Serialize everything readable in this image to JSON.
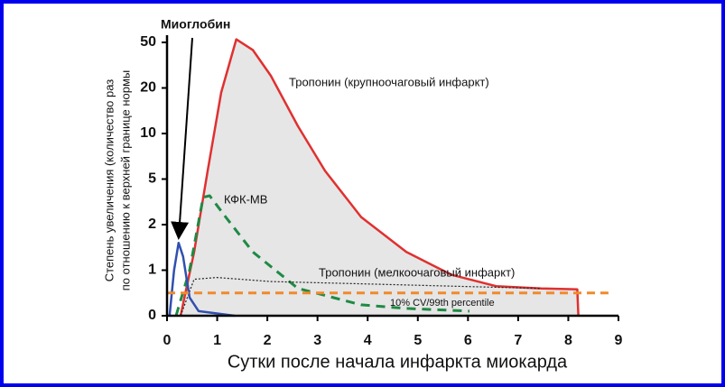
{
  "chart_data": {
    "type": "line",
    "x_label": "Сутки после начала инфаркта миокарда",
    "y_label": [
      "Степень увеличения (количество раз",
      "по отношению к верхней границе нормы"
    ],
    "xlim": [
      0,
      9
    ],
    "xticks": [
      0,
      1,
      2,
      3,
      4,
      5,
      6,
      7,
      8,
      9
    ],
    "ylim": [
      0,
      50
    ],
    "yticks": [
      0,
      1,
      2,
      5,
      10,
      20,
      50
    ],
    "series": [
      {
        "name": "Тропонин (крупноочаговый инфаркт)",
        "color": "#e03030",
        "style": "solid",
        "fill": "#e6e6e6",
        "x": [
          0.27,
          0.54,
          0.81,
          1.08,
          1.38,
          1.71,
          2.07,
          2.61,
          3.15,
          3.87,
          4.77,
          5.67,
          6.56,
          7.46,
          8.18,
          8.2
        ],
        "values": [
          0,
          1.4,
          5.9,
          19,
          52,
          45,
          28,
          11.6,
          5.9,
          2.5,
          1.4,
          0.9,
          0.65,
          0.6,
          0.58,
          0
        ]
      },
      {
        "name": "КФК-МВ",
        "color": "#1e8a44",
        "style": "dashed",
        "x": [
          0.18,
          0.45,
          0.72,
          0.85,
          1.17,
          1.71,
          2.61,
          3.87,
          4.77,
          6.03
        ],
        "values": [
          0,
          1,
          3.8,
          3.9,
          2.5,
          1.4,
          0.6,
          0.24,
          0.16,
          0.1
        ]
      },
      {
        "name": "Тропонин (мелкоочаговый инфаркт)",
        "color": "#222222",
        "style": "dotted",
        "x": [
          0.27,
          0.54,
          0.99,
          2.07,
          3.87,
          5.67,
          7.46
        ],
        "values": [
          0,
          0.8,
          0.84,
          0.75,
          0.7,
          0.65,
          0.6
        ]
      },
      {
        "name": "Миоглобин",
        "color": "#3050b0",
        "style": "solid",
        "x": [
          0.05,
          0.14,
          0.23,
          0.32,
          0.45,
          0.63,
          1.35
        ],
        "values": [
          0,
          1,
          1.6,
          1.3,
          0.4,
          0.1,
          0
        ]
      }
    ],
    "threshold": {
      "value": 0.5,
      "x": [
        0,
        8.8
      ],
      "color": "#f08a2c",
      "label": "10% CV/99th percentile"
    }
  }
}
